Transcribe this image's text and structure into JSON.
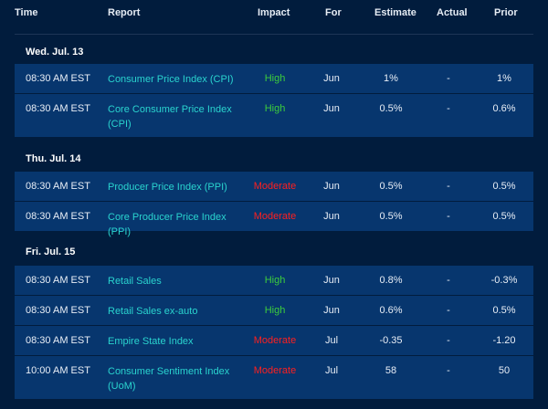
{
  "columns": {
    "time": "Time",
    "report": "Report",
    "impact": "Impact",
    "for": "For",
    "estimate": "Estimate",
    "actual": "Actual",
    "prior": "Prior"
  },
  "days": [
    {
      "label": "Wed. Jul. 13",
      "rows": [
        {
          "time": "08:30 AM EST",
          "report": "Consumer Price Index (CPI)",
          "impact": "High",
          "for": "Jun",
          "estimate": "1%",
          "actual": "-",
          "prior": "1%"
        },
        {
          "time": "08:30 AM EST",
          "report": "Core Consumer Price Index (CPI)",
          "impact": "High",
          "for": "Jun",
          "estimate": "0.5%",
          "actual": "-",
          "prior": "0.6%"
        }
      ]
    },
    {
      "label": "Thu. Jul. 14",
      "rows": [
        {
          "time": "08:30 AM EST",
          "report": "Producer Price Index (PPI)",
          "impact": "Moderate",
          "for": "Jun",
          "estimate": "0.5%",
          "actual": "-",
          "prior": "0.5%"
        },
        {
          "time": "08:30 AM EST",
          "report": "Core Producer Price Index (PPI)",
          "impact": "Moderate",
          "for": "Jun",
          "estimate": "0.5%",
          "actual": "-",
          "prior": "0.5%"
        }
      ]
    },
    {
      "label": "Fri. Jul. 15",
      "rows": [
        {
          "time": "08:30 AM EST",
          "report": "Retail Sales",
          "impact": "High",
          "for": "Jun",
          "estimate": "0.8%",
          "actual": "-",
          "prior": "-0.3%"
        },
        {
          "time": "08:30 AM EST",
          "report": "Retail Sales ex-auto",
          "impact": "High",
          "for": "Jun",
          "estimate": "0.6%",
          "actual": "-",
          "prior": "0.5%"
        },
        {
          "time": "08:30 AM EST",
          "report": "Empire State Index",
          "impact": "Moderate",
          "for": "Jul",
          "estimate": "-0.35",
          "actual": "-",
          "prior": "-1.20"
        },
        {
          "time": "10:00 AM EST",
          "report": "Consumer Sentiment Index (UoM)",
          "impact": "Moderate",
          "for": "Jul",
          "estimate": "58",
          "actual": "-",
          "prior": "50"
        }
      ]
    }
  ],
  "colors": {
    "background": "#011c3d",
    "row_background": "#07366e",
    "report_link": "#2ad4cf",
    "impact_high": "#3ccd3c",
    "impact_moderate": "#ff1f1f"
  }
}
